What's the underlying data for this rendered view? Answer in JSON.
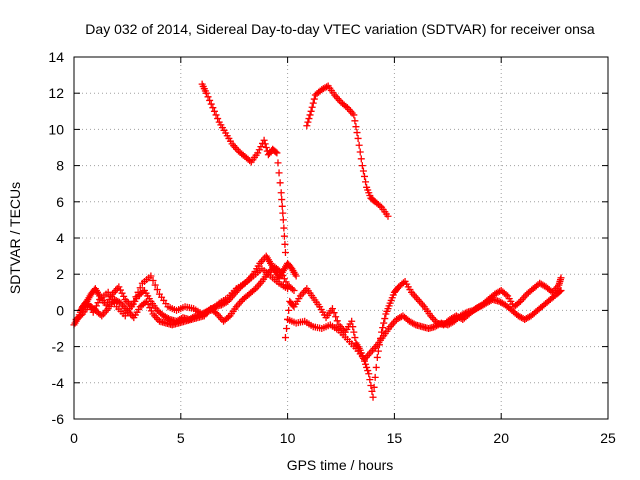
{
  "chart_data": {
    "type": "scatter",
    "title": "Day 032 of 2014, Sidereal Day-to-day VTEC variation (SDTVAR) for receiver onsa",
    "xlabel": "GPS time / hours",
    "ylabel": "SDTVAR / TECUs",
    "xlim": [
      0,
      25
    ],
    "ylim": [
      -6,
      14
    ],
    "xticks": [
      0,
      5,
      10,
      15,
      20,
      25
    ],
    "yticks": [
      -6,
      -4,
      -2,
      0,
      2,
      4,
      6,
      8,
      10,
      12,
      14
    ],
    "grid": true,
    "marker": "+",
    "color": "#ff0000",
    "series": [
      {
        "name": "trace-low-a",
        "x": [
          0.0,
          0.2,
          0.4,
          0.6,
          0.8,
          1.0,
          1.2,
          1.5,
          1.8,
          2.1,
          2.4,
          2.7,
          3.0,
          3.3,
          3.6,
          3.9,
          4.2,
          4.5,
          4.8,
          5.1,
          5.4,
          5.7,
          6.0,
          6.3,
          6.6,
          6.9,
          7.2,
          7.5,
          7.8,
          8.1,
          8.4,
          8.7,
          9.0,
          9.2,
          9.4,
          9.6,
          9.8,
          10.0,
          10.2,
          10.4
        ],
        "y": [
          -0.8,
          -0.4,
          0.2,
          0.5,
          0.9,
          1.2,
          0.8,
          0.3,
          0.9,
          1.3,
          0.6,
          0.2,
          0.8,
          1.1,
          0.5,
          0.0,
          -0.3,
          -0.5,
          -0.6,
          -0.4,
          -0.5,
          -0.3,
          -0.2,
          0.0,
          0.2,
          0.3,
          0.5,
          0.9,
          1.3,
          1.6,
          2.0,
          2.6,
          3.0,
          2.6,
          2.2,
          1.8,
          2.2,
          2.6,
          2.3,
          1.9
        ]
      },
      {
        "name": "trace-low-b",
        "x": [
          0.1,
          0.4,
          0.7,
          1.0,
          1.3,
          1.6,
          1.9,
          2.2,
          2.5,
          2.8,
          3.1,
          3.4,
          3.7,
          4.0,
          4.3,
          4.6,
          4.9,
          5.2,
          5.5,
          5.8,
          6.1,
          6.4,
          6.7,
          7.0,
          7.3,
          7.6,
          7.9,
          8.2,
          8.5,
          8.8,
          9.1,
          9.4,
          9.7,
          10.0,
          10.3
        ],
        "y": [
          -0.5,
          -0.2,
          0.3,
          0.0,
          -0.3,
          0.1,
          0.6,
          0.4,
          0.0,
          -0.4,
          0.2,
          0.5,
          -0.2,
          -0.6,
          -0.7,
          -0.8,
          -0.7,
          -0.6,
          -0.5,
          -0.4,
          -0.3,
          0.1,
          -0.2,
          -0.6,
          -0.3,
          0.2,
          0.6,
          0.9,
          1.2,
          1.6,
          2.1,
          2.4,
          2.1,
          1.4,
          1.1
        ]
      },
      {
        "name": "trace-low-c",
        "x": [
          0.3,
          0.6,
          0.9,
          1.2,
          1.6,
          2.0,
          2.4,
          2.8,
          3.2,
          3.6,
          4.0,
          4.4,
          4.8,
          5.2,
          5.6,
          6.0,
          6.4,
          6.8,
          7.2,
          7.6,
          8.0,
          8.4,
          8.8,
          9.2,
          9.6,
          10.0
        ],
        "y": [
          0.0,
          0.5,
          -0.1,
          0.6,
          1.0,
          0.2,
          -0.3,
          0.5,
          1.5,
          1.9,
          0.9,
          0.2,
          0.0,
          0.2,
          0.1,
          -0.2,
          0.0,
          0.4,
          0.7,
          1.2,
          1.5,
          1.9,
          2.3,
          1.9,
          1.5,
          1.2
        ]
      },
      {
        "name": "trace-mid",
        "x": [
          9.9,
          10.1,
          10.3,
          10.6,
          10.9,
          11.2,
          11.5,
          11.8,
          12.1,
          12.4,
          12.7,
          13.0,
          13.2,
          13.4,
          13.6,
          13.8,
          14.0,
          14.2,
          14.4,
          14.6,
          14.8,
          15.0,
          15.2,
          15.5,
          15.8,
          16.1,
          16.4,
          16.7,
          17.0,
          17.3,
          17.6,
          17.9,
          18.2,
          18.5,
          18.8,
          19.1,
          19.4,
          19.7,
          20.0,
          20.3,
          20.6,
          20.9,
          21.2,
          21.5,
          21.8,
          22.1,
          22.4,
          22.7,
          22.8
        ],
        "y": [
          -1.5,
          0.5,
          0.2,
          0.8,
          1.2,
          0.7,
          0.2,
          -0.4,
          0.1,
          -0.8,
          -1.2,
          -0.6,
          -1.8,
          -2.2,
          -2.8,
          -3.5,
          -4.8,
          -2.6,
          -1.2,
          -0.2,
          0.4,
          1.0,
          1.3,
          1.6,
          1.0,
          0.6,
          0.2,
          -0.3,
          -0.7,
          -0.8,
          -0.5,
          -0.3,
          -0.5,
          -0.2,
          0.1,
          0.3,
          0.6,
          0.9,
          1.1,
          0.8,
          0.2,
          0.5,
          0.9,
          1.2,
          1.5,
          1.3,
          1.0,
          1.4,
          1.8
        ]
      },
      {
        "name": "trace-mid-b",
        "x": [
          10.0,
          10.4,
          10.8,
          11.2,
          11.6,
          12.0,
          12.4,
          12.8,
          13.2,
          13.6,
          13.9,
          14.2,
          14.5,
          14.8,
          15.1,
          15.4,
          15.7,
          16.0,
          16.3,
          16.6,
          16.9,
          17.2,
          17.5,
          17.8,
          18.1,
          18.4,
          18.7,
          19.0,
          19.3,
          19.6,
          19.9,
          20.2,
          20.5,
          20.8,
          21.1,
          21.4,
          21.7,
          22.0,
          22.3,
          22.6,
          22.8
        ],
        "y": [
          -0.5,
          -0.7,
          -0.6,
          -0.9,
          -1.0,
          -0.8,
          -1.1,
          -1.6,
          -2.1,
          -2.7,
          -2.3,
          -1.9,
          -1.4,
          -0.9,
          -0.5,
          -0.3,
          -0.6,
          -0.8,
          -0.9,
          -1.0,
          -0.9,
          -0.7,
          -0.8,
          -0.6,
          -0.3,
          -0.1,
          0.0,
          0.2,
          0.4,
          0.6,
          0.5,
          0.3,
          0.0,
          -0.3,
          -0.5,
          -0.3,
          0.0,
          0.3,
          0.6,
          0.9,
          1.1
        ]
      },
      {
        "name": "trace-high-a",
        "x": [
          6.0,
          6.2,
          6.5,
          6.8,
          7.1,
          7.4,
          7.7,
          8.0,
          8.3,
          8.6,
          8.9,
          9.1,
          9.3,
          9.5,
          9.7,
          9.8,
          9.9
        ],
        "y": [
          12.5,
          12.0,
          11.2,
          10.4,
          9.8,
          9.2,
          8.8,
          8.5,
          8.2,
          8.7,
          9.4,
          8.6,
          8.9,
          8.7,
          6.5,
          5.0,
          3.2
        ]
      },
      {
        "name": "trace-high-b",
        "x": [
          10.9,
          11.1,
          11.3,
          11.6,
          11.9,
          12.2,
          12.5,
          12.8,
          13.1,
          13.3,
          13.5,
          13.7,
          13.9,
          14.1,
          14.4,
          14.7
        ],
        "y": [
          10.2,
          11.0,
          11.9,
          12.2,
          12.4,
          11.9,
          11.5,
          11.2,
          10.8,
          9.5,
          8.0,
          6.8,
          6.2,
          6.0,
          5.7,
          5.2
        ]
      }
    ]
  }
}
